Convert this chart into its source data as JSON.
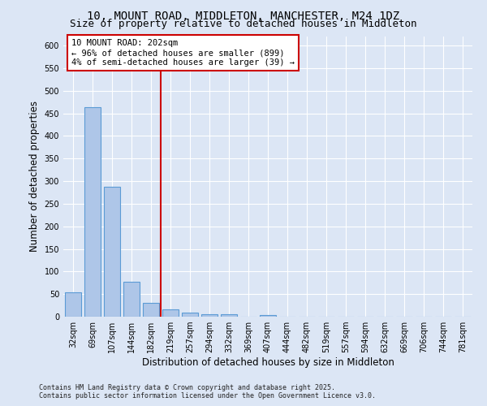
{
  "title_line1": "10, MOUNT ROAD, MIDDLETON, MANCHESTER, M24 1DZ",
  "title_line2": "Size of property relative to detached houses in Middleton",
  "xlabel": "Distribution of detached houses by size in Middleton",
  "ylabel": "Number of detached properties",
  "footer_line1": "Contains HM Land Registry data © Crown copyright and database right 2025.",
  "footer_line2": "Contains public sector information licensed under the Open Government Licence v3.0.",
  "categories": [
    "32sqm",
    "69sqm",
    "107sqm",
    "144sqm",
    "182sqm",
    "219sqm",
    "257sqm",
    "294sqm",
    "332sqm",
    "369sqm",
    "407sqm",
    "444sqm",
    "482sqm",
    "519sqm",
    "557sqm",
    "594sqm",
    "632sqm",
    "669sqm",
    "706sqm",
    "744sqm",
    "781sqm"
  ],
  "values": [
    54,
    463,
    288,
    77,
    31,
    16,
    9,
    6,
    5,
    0,
    4,
    0,
    0,
    0,
    0,
    0,
    0,
    0,
    0,
    0,
    0
  ],
  "bar_color": "#aec6e8",
  "bar_edge_color": "#5b9bd5",
  "vline_index": 4.5,
  "vline_color": "#cc0000",
  "annotation_title": "10 MOUNT ROAD: 202sqm",
  "annotation_line1": "← 96% of detached houses are smaller (899)",
  "annotation_line2": "4% of semi-detached houses are larger (39) →",
  "annotation_box_color": "#cc0000",
  "ylim": [
    0,
    620
  ],
  "yticks": [
    0,
    50,
    100,
    150,
    200,
    250,
    300,
    350,
    400,
    450,
    500,
    550,
    600
  ],
  "background_color": "#dce6f5",
  "plot_bg_color": "#dce6f5",
  "grid_color": "#ffffff",
  "title_fontsize": 10,
  "subtitle_fontsize": 9,
  "tick_fontsize": 7,
  "ylabel_fontsize": 8.5,
  "xlabel_fontsize": 8.5,
  "footer_fontsize": 6,
  "annot_fontsize": 7.5
}
